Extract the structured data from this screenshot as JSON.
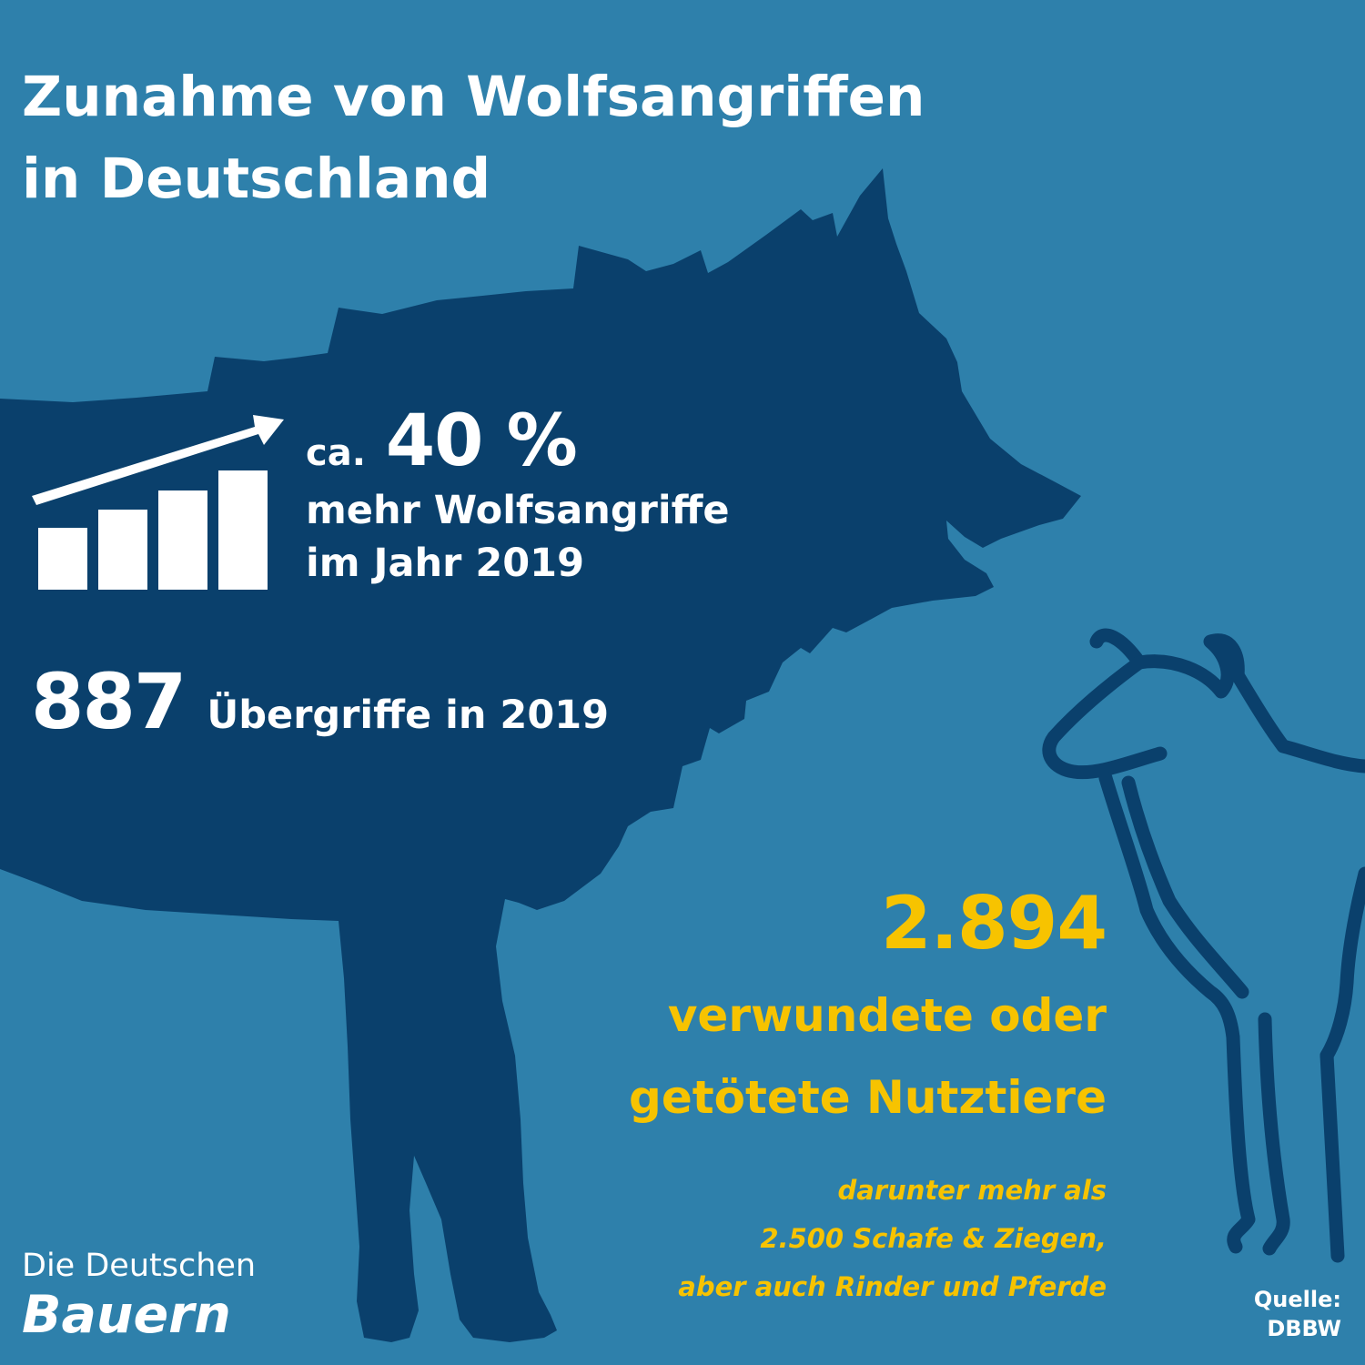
{
  "title": {
    "line1": "Zunahme von Wolfsangriffen",
    "line2": "in Deutschland"
  },
  "icons": {
    "wolf": "wolf-silhouette-icon",
    "sheep": "sheep-outline-icon",
    "growth": "bar-chart-arrow-icon"
  },
  "increase": {
    "prefix": "ca.",
    "value": "40 %",
    "line1": "mehr Wolfsangriffe",
    "line2": "im Jahr 2019"
  },
  "incidents": {
    "value": "887",
    "label": "Übergriffe in 2019"
  },
  "animals": {
    "value": "2.894",
    "line1": "verwundete oder",
    "line2": "getötete Nutztiere",
    "note1": "darunter mehr als",
    "note2": "2.500 Schafe & Ziegen,",
    "note3": "aber auch Rinder und Pferde"
  },
  "logo": {
    "line1": "Die Deutschen",
    "line2": "Bauern"
  },
  "source": {
    "line1": "Quelle:",
    "line2": "DBBW"
  },
  "colors": {
    "background": "#2e80ab",
    "wolf": "#0a406c",
    "text": "#ffffff",
    "accent": "#f7c300"
  }
}
